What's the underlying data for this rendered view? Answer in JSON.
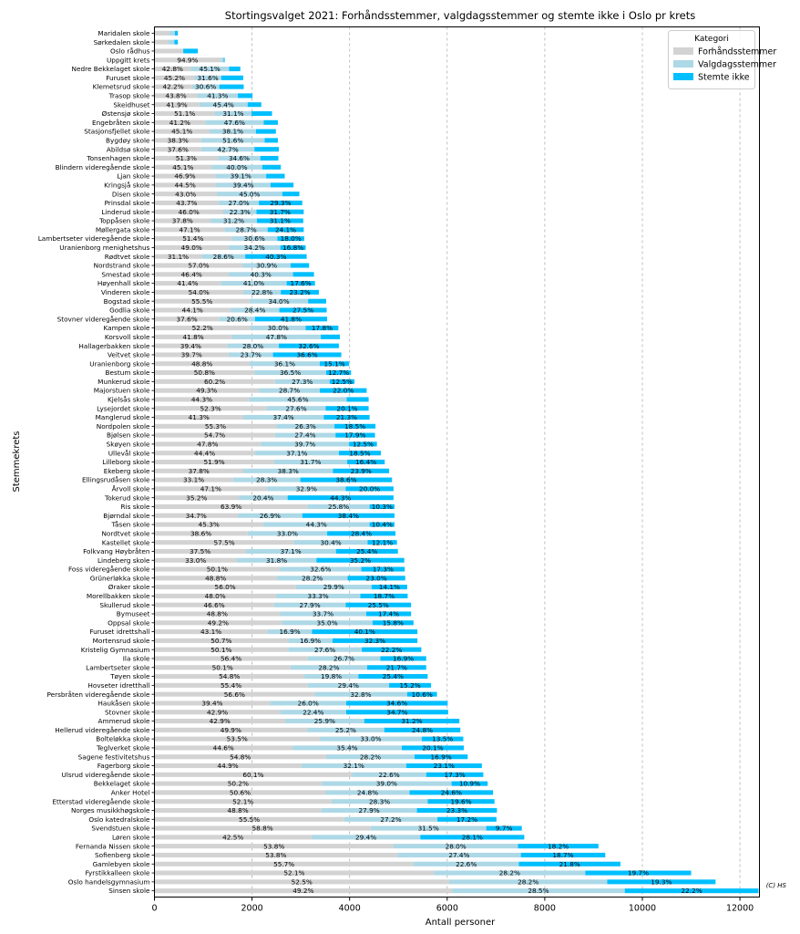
{
  "chart_data": {
    "type": "bar",
    "orientation": "horizontal",
    "stacked": true,
    "title": "Stortingsvalget 2021: Forhåndsstemmer, valgdagsstemmer og stemte ikke i Oslo pr krets",
    "xlabel": "Antall personer",
    "ylabel": "Stemmekrets",
    "xlim": [
      0,
      12400
    ],
    "xticks": [
      0,
      2000,
      4000,
      6000,
      8000,
      10000,
      12000
    ],
    "grid": "x-dashed",
    "legend": {
      "title": "Kategori",
      "placement": "top-right",
      "entries": [
        "Forhåndsstemmer",
        "Valgdagsstemmer",
        "Stemte ikke"
      ]
    },
    "colors": {
      "Forhåndsstemmer": "#d3d3d3",
      "Valgdagsstemmer": "#add8e6",
      "Stemte ikke": "#00bfff"
    },
    "annotation": "(C) HS",
    "columns": [
      "krets",
      "Forhåndsstemmer",
      "Valgdagsstemmer",
      "Stemte ikke",
      "pct_forh",
      "pct_valg",
      "pct_ikke"
    ],
    "rows": [
      [
        "Maridalen skole",
        300,
        120,
        60,
        "",
        "",
        ""
      ],
      [
        "Sørkedalen skole",
        290,
        120,
        70,
        "",
        "",
        ""
      ],
      [
        "Oslo rådhus",
        590,
        0,
        300,
        "",
        "",
        ""
      ],
      [
        "Uppgitt krets",
        1360,
        60,
        20,
        "94.9%",
        "",
        ""
      ],
      [
        "Nedre Bekkelaget skole",
        740,
        790,
        230,
        "42.8%",
        "45.1%",
        ""
      ],
      [
        "Furuset skole",
        820,
        550,
        450,
        "45.2%",
        "31.6%",
        ""
      ],
      [
        "Klemetsrud skole",
        770,
        560,
        500,
        "42.2%",
        "30.6%",
        ""
      ],
      [
        "Trasop skole",
        880,
        830,
        300,
        "43.8%",
        "41.3%",
        ""
      ],
      [
        "Skeidhuset",
        920,
        990,
        280,
        "41.9%",
        "45.4%",
        ""
      ],
      [
        "Østensjø skole",
        1240,
        750,
        420,
        "51.1%",
        "31.1%",
        ""
      ],
      [
        "Engebråten skole",
        1040,
        1200,
        290,
        "41.2%",
        "47.6%",
        ""
      ],
      [
        "Stasjonsfjellet skole",
        1130,
        950,
        410,
        "45.1%",
        "38.1%",
        ""
      ],
      [
        "Bygdøy skole",
        960,
        1300,
        270,
        "38.3%",
        "51.6%",
        ""
      ],
      [
        "Abildsø skole",
        960,
        1090,
        500,
        "37.6%",
        "42.7%",
        ""
      ],
      [
        "Tonsenhagen skole",
        1300,
        870,
        370,
        "51.3%",
        "34.6%",
        ""
      ],
      [
        "Blindern videregående skole",
        1170,
        1040,
        380,
        "45.1%",
        "40.0%",
        ""
      ],
      [
        "Ljan skole",
        1250,
        1040,
        380,
        "46.9%",
        "39.1%",
        ""
      ],
      [
        "Kringsjå skole",
        1260,
        1120,
        470,
        "44.5%",
        "39.4%",
        ""
      ],
      [
        "Disen skole",
        1280,
        1340,
        350,
        "43.0%",
        "45.0%",
        ""
      ],
      [
        "Prinsdal skole",
        1320,
        820,
        890,
        "43.7%",
        "27.0%",
        "29.3%"
      ],
      [
        "Linderud skole",
        1410,
        680,
        970,
        "46.0%",
        "22.3%",
        "31.7%"
      ],
      [
        "Toppåsen skole",
        1150,
        950,
        950,
        "37.8%",
        "31.2%",
        "31.1%"
      ],
      [
        "Møllergata skole",
        1440,
        880,
        740,
        "47.1%",
        "28.7%",
        "24.1%"
      ],
      [
        "Lambertseter videregående skole",
        1580,
        940,
        550,
        "51.4%",
        "30.6%",
        "18.0%"
      ],
      [
        "Uranienborg menighetshus",
        1520,
        1060,
        520,
        "49.0%",
        "34.2%",
        "16.8%"
      ],
      [
        "Rødtvet skole",
        970,
        890,
        1260,
        "31.1%",
        "28.6%",
        "40.3%"
      ],
      [
        "Nordstrand skole",
        1810,
        980,
        380,
        "57.0%",
        "30.9%",
        ""
      ],
      [
        "Smestad skole",
        1520,
        1320,
        430,
        "46.4%",
        "40.3%",
        ""
      ],
      [
        "Høyenhall skole",
        1360,
        1350,
        580,
        "41.4%",
        "41.0%",
        "17.6%"
      ],
      [
        "Vinderen skole",
        1820,
        770,
        780,
        "54.0%",
        "22.8%",
        "23.2%"
      ],
      [
        "Bogstad skole",
        1950,
        1200,
        370,
        "55.5%",
        "34.0%",
        ""
      ],
      [
        "Godlia skole",
        1560,
        1000,
        970,
        "44.1%",
        "28.4%",
        "27.5%"
      ],
      [
        "Stovner videregående skole",
        1330,
        730,
        1480,
        "37.6%",
        "20.6%",
        "41.8%"
      ],
      [
        "Kampen skole",
        1970,
        1130,
        670,
        "52.2%",
        "30.0%",
        "17.8%"
      ],
      [
        "Korsvoll skole",
        1590,
        1820,
        390,
        "41.8%",
        "47.8%",
        ""
      ],
      [
        "Hallagerbakken skole",
        1490,
        1060,
        1230,
        "39.4%",
        "28.0%",
        "32.6%"
      ],
      [
        "Veitvet skole",
        1520,
        910,
        1400,
        "39.7%",
        "23.7%",
        "36.6%"
      ],
      [
        "Uranienborg skole",
        1950,
        1440,
        600,
        "48.8%",
        "36.1%",
        "15.1%"
      ],
      [
        "Bestum skole",
        2050,
        1470,
        510,
        "50.8%",
        "36.5%",
        "12.7%"
      ],
      [
        "Munkerud skole",
        2470,
        1120,
        510,
        "60.2%",
        "27.3%",
        "12.5%"
      ],
      [
        "Majorstuen skole",
        2140,
        1250,
        960,
        "49.3%",
        "28.7%",
        "22.0%"
      ],
      [
        "Kjelsås skole",
        1940,
        2000,
        450,
        "44.3%",
        "45.6%",
        ""
      ],
      [
        "Lysejordet skole",
        2300,
        1210,
        880,
        "52.3%",
        "27.6%",
        "20.1%"
      ],
      [
        "Manglerud skole",
        1820,
        1650,
        940,
        "41.3%",
        "37.4%",
        "21.3%"
      ],
      [
        "Nordpolen skole",
        2500,
        1190,
        840,
        "55.3%",
        "26.3%",
        "18.5%"
      ],
      [
        "Bjølsen skole",
        2470,
        1240,
        810,
        "54.7%",
        "27.4%",
        "17.9%"
      ],
      [
        "Skøyen skole",
        2180,
        1810,
        570,
        "47.8%",
        "39.7%",
        "12.5%"
      ],
      [
        "Ullevål skole",
        2060,
        1720,
        860,
        "44.4%",
        "37.1%",
        "18.5%"
      ],
      [
        "Lilleborg skole",
        2450,
        1500,
        770,
        "51.9%",
        "31.7%",
        "16.4%"
      ],
      [
        "Ekeberg skole",
        1820,
        1840,
        1150,
        "37.8%",
        "38.3%",
        "23.9%"
      ],
      [
        "Ellingsrudåsen skole",
        1610,
        1380,
        1880,
        "33.1%",
        "28.3%",
        "38.6%"
      ],
      [
        "Årvoll skole",
        2310,
        1610,
        980,
        "47.1%",
        "32.9%",
        "20.0%"
      ],
      [
        "Tokerud skole",
        1730,
        1000,
        2170,
        "35.2%",
        "20.4%",
        "44.3%"
      ],
      [
        "Ris skole",
        3140,
        1270,
        510,
        "63.9%",
        "25.8%",
        "10.3%"
      ],
      [
        "Bjørndal skole",
        1710,
        1320,
        1890,
        "34.7%",
        "26.9%",
        "38.4%"
      ],
      [
        "Tåsen skole",
        2230,
        2180,
        510,
        "45.3%",
        "44.3%",
        "10.4%"
      ],
      [
        "Nordtvet skole",
        1910,
        1630,
        1400,
        "38.6%",
        "33.0%",
        "28.4%"
      ],
      [
        "Kastellet skole",
        2860,
        1510,
        600,
        "57.5%",
        "30.4%",
        "12.1%"
      ],
      [
        "Folkvang Høybråten",
        1870,
        1850,
        1270,
        "37.5%",
        "37.1%",
        "25.4%"
      ],
      [
        "Lindeberg skole",
        1690,
        1630,
        1800,
        "33.0%",
        "31.8%",
        "35.2%"
      ],
      [
        "Foss videregående skole",
        2570,
        1670,
        890,
        "50.1%",
        "32.6%",
        "17.3%"
      ],
      [
        "Grünerløkka skole",
        2510,
        1450,
        1180,
        "48.8%",
        "28.2%",
        "23.0%"
      ],
      [
        "Øraker skole",
        2900,
        1550,
        730,
        "56.0%",
        "29.9%",
        "14.1%"
      ],
      [
        "Morellbakken skole",
        2490,
        1730,
        970,
        "48.0%",
        "33.3%",
        "18.7%"
      ],
      [
        "Skullerud skole",
        2450,
        1470,
        1340,
        "46.6%",
        "27.9%",
        "25.5%"
      ],
      [
        "Bymuseet",
        2570,
        1770,
        920,
        "48.8%",
        "33.7%",
        "17.4%"
      ],
      [
        "Oppsal skole",
        2610,
        1860,
        840,
        "49.2%",
        "35.0%",
        "15.8%"
      ],
      [
        "Furuset idrettshall",
        2320,
        910,
        2160,
        "43.1%",
        "16.9%",
        "40.1%"
      ],
      [
        "Mortensrud skole",
        2740,
        910,
        1740,
        "50.7%",
        "16.9%",
        "32.3%"
      ],
      [
        "Kristelig Gymnasium",
        2740,
        1510,
        1220,
        "50.1%",
        "27.6%",
        "22.2%"
      ],
      [
        "Ila skole",
        3140,
        1490,
        940,
        "56.4%",
        "26.7%",
        "16.9%"
      ],
      [
        "Lambertseter skole",
        2790,
        1570,
        1210,
        "50.1%",
        "28.2%",
        "21.7%"
      ],
      [
        "Tøyen skole",
        3070,
        1110,
        1420,
        "54.8%",
        "19.8%",
        "25.4%"
      ],
      [
        "Hovseter idretthall",
        3140,
        1670,
        860,
        "55.4%",
        "29.4%",
        "15.2%"
      ],
      [
        "Persbråten videregående skole",
        3280,
        1900,
        610,
        "56.6%",
        "32.8%",
        "10.6%"
      ],
      [
        "Haukåsen skole",
        2370,
        1560,
        2080,
        "39.4%",
        "26.0%",
        "34.6%"
      ],
      [
        "Stovner skole",
        2580,
        1350,
        2090,
        "42.9%",
        "22.4%",
        "34.7%"
      ],
      [
        "Ammerud skole",
        2680,
        1620,
        1950,
        "42.9%",
        "25.9%",
        "31.2%"
      ],
      [
        "Hellerud videregående skole",
        3130,
        1580,
        1560,
        "49.9%",
        "25.2%",
        "24.8%"
      ],
      [
        "Bolteløkka skole",
        3390,
        2090,
        850,
        "53.5%",
        "33.0%",
        "13.5%"
      ],
      [
        "Teglverket skole",
        2830,
        2240,
        1270,
        "44.6%",
        "35.4%",
        "20.1%"
      ],
      [
        "Sagene festivitetshus",
        3520,
        1810,
        1090,
        "54.8%",
        "28.2%",
        "16.9%"
      ],
      [
        "Fagerborg skole",
        3010,
        2150,
        1550,
        "44.9%",
        "32.1%",
        "23.1%"
      ],
      [
        "Ulsrud videregående skole",
        4050,
        1520,
        1170,
        "60.1%",
        "22.6%",
        "17.3%"
      ],
      [
        "Bekkelaget skole",
        3430,
        2660,
        740,
        "50.2%",
        "39.0%",
        "10.9%"
      ],
      [
        "Anker Hotel",
        3510,
        1720,
        1710,
        "50.6%",
        "24.8%",
        "24.6%"
      ],
      [
        "Etterstad videregående skole",
        3630,
        1970,
        1370,
        "52.1%",
        "28.3%",
        "19.6%"
      ],
      [
        "Norges musikkhøgskole",
        3420,
        1960,
        1640,
        "48.8%",
        "27.9%",
        "23.3%"
      ],
      [
        "Oslo katedralskole",
        3890,
        1910,
        1210,
        "55.5%",
        "27.2%",
        "17.2%"
      ],
      [
        "Svendstuen skole",
        4430,
        2370,
        730,
        "58.8%",
        "31.5%",
        "9.7%"
      ],
      [
        "Løren skole",
        3220,
        2230,
        2130,
        "42.5%",
        "29.4%",
        "28.1%"
      ],
      [
        "Fernanda Nissen skole",
        4900,
        2550,
        1650,
        "53.8%",
        "28.0%",
        "18.2%"
      ],
      [
        "Sofienberg skole",
        4980,
        2530,
        1730,
        "53.8%",
        "27.4%",
        "18.7%"
      ],
      [
        "Gamlebyen skole",
        5310,
        2160,
        2080,
        "55.7%",
        "22.6%",
        "21.8%"
      ],
      [
        "Fyrstikkalleen skole",
        5730,
        3100,
        2170,
        "52.1%",
        "28.2%",
        "19.7%"
      ],
      [
        "Oslo handelsgymnasium",
        6040,
        3240,
        2220,
        "52.5%",
        "28.2%",
        "19.3%"
      ],
      [
        "Sinsen skole",
        6100,
        3540,
        2740,
        "49.2%",
        "28.5%",
        "22.2%"
      ]
    ]
  }
}
